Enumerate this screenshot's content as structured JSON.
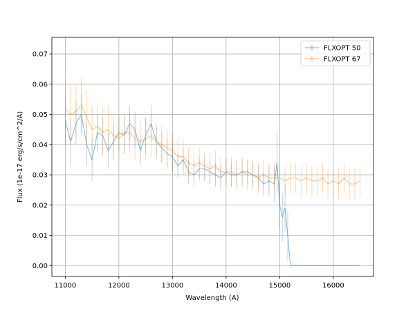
{
  "chart_data": {
    "type": "line",
    "xlabel": "Wavelength (A)",
    "ylabel": "Flux (1e-17 erg/s/cm^2/A)",
    "xlim": [
      10750,
      16750
    ],
    "ylim": [
      -0.0036,
      0.0755
    ],
    "xticks": [
      11000,
      12000,
      13000,
      14000,
      15000,
      16000
    ],
    "yticks": [
      0.0,
      0.01,
      0.02,
      0.03,
      0.04,
      0.05,
      0.06,
      0.07
    ],
    "xtick_labels": [
      "11000",
      "12000",
      "13000",
      "14000",
      "15000",
      "16000"
    ],
    "ytick_labels": [
      "0.00",
      "0.01",
      "0.02",
      "0.03",
      "0.04",
      "0.05",
      "0.06",
      "0.07"
    ],
    "grid": true,
    "legend_position": "top-right",
    "series": [
      {
        "name": "FLXOPT 50",
        "color": "#1f77b4",
        "x": [
          11000,
          11100,
          11200,
          11300,
          11400,
          11500,
          11600,
          11700,
          11800,
          11900,
          12000,
          12100,
          12200,
          12300,
          12400,
          12500,
          12600,
          12700,
          12800,
          12900,
          13000,
          13100,
          13200,
          13300,
          13400,
          13500,
          13600,
          13700,
          13800,
          13900,
          14000,
          14100,
          14200,
          14300,
          14400,
          14500,
          14600,
          14700,
          14800,
          14900,
          14950,
          15000,
          15050,
          15100,
          15150,
          15200,
          15400,
          15600,
          15800,
          16000,
          16200,
          16500
        ],
        "y": [
          0.048,
          0.041,
          0.047,
          0.05,
          0.04,
          0.035,
          0.044,
          0.043,
          0.038,
          0.041,
          0.044,
          0.043,
          0.047,
          0.045,
          0.038,
          0.043,
          0.047,
          0.041,
          0.039,
          0.037,
          0.036,
          0.033,
          0.035,
          0.031,
          0.03,
          0.032,
          0.032,
          0.031,
          0.03,
          0.029,
          0.031,
          0.03,
          0.03,
          0.031,
          0.031,
          0.03,
          0.029,
          0.027,
          0.028,
          0.027,
          0.034,
          0.02,
          0.016,
          0.019,
          0.01,
          0.0,
          0.0,
          0.0,
          0.0,
          0.0,
          0.0,
          0.0
        ],
        "err": [
          0.008,
          0.008,
          0.007,
          0.007,
          0.007,
          0.007,
          0.006,
          0.006,
          0.006,
          0.006,
          0.006,
          0.006,
          0.006,
          0.006,
          0.005,
          0.006,
          0.006,
          0.005,
          0.005,
          0.005,
          0.005,
          0.004,
          0.004,
          0.004,
          0.004,
          0.004,
          0.004,
          0.004,
          0.004,
          0.004,
          0.004,
          0.004,
          0.004,
          0.004,
          0.004,
          0.004,
          0.004,
          0.004,
          0.005,
          0.006,
          0.01,
          0.008,
          0.008,
          0.008,
          0.008,
          0.0,
          0.0,
          0.0,
          0.0,
          0.0,
          0.0,
          0.0
        ]
      },
      {
        "name": "FLXOPT 67",
        "color": "#ff7f0e",
        "x": [
          11000,
          11100,
          11200,
          11300,
          11400,
          11500,
          11600,
          11700,
          11800,
          11900,
          12000,
          12100,
          12200,
          12300,
          12400,
          12500,
          12600,
          12700,
          12800,
          12900,
          13000,
          13100,
          13200,
          13300,
          13400,
          13500,
          13600,
          13700,
          13800,
          13900,
          14000,
          14100,
          14200,
          14300,
          14400,
          14500,
          14600,
          14700,
          14800,
          14900,
          15000,
          15100,
          15200,
          15300,
          15400,
          15500,
          15600,
          15700,
          15800,
          15900,
          16000,
          16100,
          16200,
          16300,
          16400,
          16500
        ],
        "y": [
          0.052,
          0.05,
          0.051,
          0.053,
          0.049,
          0.045,
          0.046,
          0.044,
          0.045,
          0.043,
          0.042,
          0.044,
          0.044,
          0.042,
          0.041,
          0.042,
          0.043,
          0.041,
          0.04,
          0.039,
          0.038,
          0.036,
          0.036,
          0.034,
          0.033,
          0.034,
          0.033,
          0.032,
          0.033,
          0.031,
          0.031,
          0.031,
          0.03,
          0.031,
          0.03,
          0.03,
          0.029,
          0.03,
          0.029,
          0.029,
          0.029,
          0.028,
          0.029,
          0.029,
          0.028,
          0.029,
          0.028,
          0.028,
          0.029,
          0.027,
          0.028,
          0.027,
          0.029,
          0.027,
          0.027,
          0.028
        ],
        "err": [
          0.01,
          0.01,
          0.009,
          0.009,
          0.009,
          0.008,
          0.008,
          0.008,
          0.008,
          0.007,
          0.007,
          0.007,
          0.007,
          0.007,
          0.007,
          0.007,
          0.007,
          0.006,
          0.006,
          0.006,
          0.006,
          0.006,
          0.006,
          0.005,
          0.005,
          0.005,
          0.005,
          0.005,
          0.005,
          0.005,
          0.005,
          0.005,
          0.005,
          0.005,
          0.005,
          0.005,
          0.005,
          0.005,
          0.005,
          0.005,
          0.005,
          0.005,
          0.005,
          0.005,
          0.005,
          0.005,
          0.005,
          0.005,
          0.005,
          0.005,
          0.005,
          0.005,
          0.005,
          0.005,
          0.005,
          0.005
        ]
      }
    ]
  }
}
